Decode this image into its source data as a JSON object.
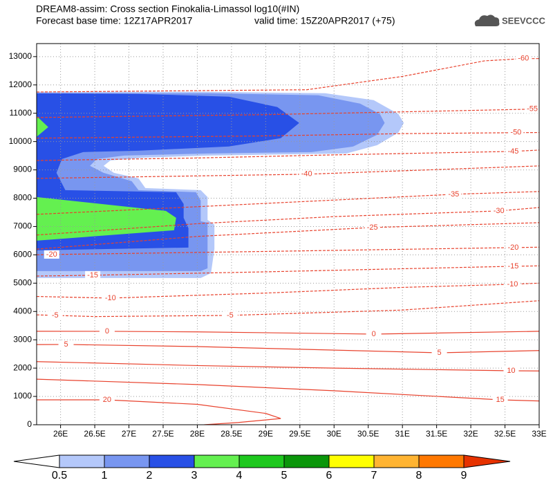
{
  "chart_data": {
    "type": "cross-section",
    "title": "DREAM8-assim: Cross section Finokalia-Limassol log10(#IN)",
    "base_time": "Forecast base time: 12Z17APR2017",
    "valid_time": "valid time: 15Z20APR2017 (+75)",
    "logo": "SEEVCCC",
    "xlim": [
      25.65,
      33
    ],
    "ylim": [
      0,
      13460
    ],
    "xticks": [
      {
        "value": 26,
        "label": "26E"
      },
      {
        "value": 26.5,
        "label": "26.5E"
      },
      {
        "value": 27,
        "label": "27E"
      },
      {
        "value": 27.5,
        "label": "27.5E"
      },
      {
        "value": 28,
        "label": "28E"
      },
      {
        "value": 28.5,
        "label": "28.5E"
      },
      {
        "value": 29,
        "label": "29E"
      },
      {
        "value": 29.5,
        "label": "29.5E"
      },
      {
        "value": 30,
        "label": "30E"
      },
      {
        "value": 30.5,
        "label": "30.5E"
      },
      {
        "value": 31,
        "label": "31E"
      },
      {
        "value": 31.5,
        "label": "31.5E"
      },
      {
        "value": 32,
        "label": "32E"
      },
      {
        "value": 32.5,
        "label": "32.5E"
      },
      {
        "value": 33,
        "label": "33E"
      }
    ],
    "yticks": [
      0,
      1000,
      2000,
      3000,
      4000,
      5000,
      6000,
      7000,
      8000,
      9000,
      10000,
      11000,
      12000,
      13000
    ],
    "grid": true,
    "colorbar": {
      "levels": [
        0.5,
        1,
        2,
        3,
        4,
        5,
        6,
        7,
        8,
        9
      ],
      "colors": [
        "#b4c8fa",
        "#7896f0",
        "#2850e6",
        "#64f050",
        "#1ec81e",
        "#0a960a",
        "#ffff00",
        "#ffb432",
        "#ff7800",
        "#e63200"
      ]
    },
    "fills": [
      {
        "level": 0.5,
        "points": [
          [
            25.65,
            11755
          ],
          [
            28.15,
            11755
          ],
          [
            29.87,
            11707
          ],
          [
            30.58,
            11462
          ],
          [
            30.94,
            10974
          ],
          [
            31.02,
            10656
          ],
          [
            30.94,
            10314
          ],
          [
            30.63,
            9873
          ],
          [
            30.18,
            9580
          ],
          [
            28.15,
            9507
          ],
          [
            27.24,
            9434
          ],
          [
            26.73,
            9336
          ],
          [
            26.63,
            9141
          ],
          [
            26.78,
            8896
          ],
          [
            27.14,
            8701
          ],
          [
            27.24,
            8358
          ],
          [
            28.05,
            8285
          ],
          [
            28.15,
            8041
          ],
          [
            28.15,
            7234
          ],
          [
            28.25,
            7063
          ],
          [
            28.25,
            6208
          ],
          [
            28.2,
            5352
          ],
          [
            28.05,
            5181
          ],
          [
            25.65,
            5181
          ]
        ]
      },
      {
        "level": 1,
        "points": [
          [
            25.65,
            11707
          ],
          [
            28.15,
            11707
          ],
          [
            29.77,
            11633
          ],
          [
            30.38,
            11340
          ],
          [
            30.67,
            10974
          ],
          [
            30.74,
            10656
          ],
          [
            30.63,
            10240
          ],
          [
            30.28,
            9825
          ],
          [
            29.67,
            9629
          ],
          [
            28.15,
            9580
          ],
          [
            26.93,
            9507
          ],
          [
            26.53,
            9385
          ],
          [
            26.43,
            9141
          ],
          [
            26.63,
            8896
          ],
          [
            27.04,
            8603
          ],
          [
            27.14,
            8285
          ],
          [
            27.98,
            8212
          ],
          [
            28.05,
            7918
          ],
          [
            28.05,
            7185
          ],
          [
            28.15,
            7136
          ],
          [
            28.15,
            5523
          ],
          [
            28.05,
            5425
          ],
          [
            25.65,
            5425
          ]
        ]
      },
      {
        "level": 2,
        "points": [
          [
            25.65,
            11707
          ],
          [
            27.14,
            11683
          ],
          [
            28.46,
            11585
          ],
          [
            29.17,
            11218
          ],
          [
            29.49,
            10656
          ],
          [
            29.22,
            10118
          ],
          [
            28.46,
            9825
          ],
          [
            27.14,
            9678
          ],
          [
            26.33,
            9629
          ],
          [
            26.02,
            9385
          ],
          [
            25.94,
            8896
          ],
          [
            26.07,
            8285
          ],
          [
            27.69,
            8212
          ],
          [
            27.8,
            7797
          ],
          [
            27.8,
            7308
          ],
          [
            27.87,
            6941
          ],
          [
            27.87,
            6257
          ],
          [
            25.65,
            6159
          ]
        ]
      },
      {
        "level": 3,
        "points": [
          [
            25.65,
            10900
          ],
          [
            25.82,
            10509
          ],
          [
            25.65,
            10167
          ]
        ]
      },
      {
        "level": 3,
        "points": [
          [
            25.65,
            8041
          ],
          [
            27.54,
            7552
          ],
          [
            27.69,
            7308
          ],
          [
            27.66,
            6868
          ],
          [
            25.65,
            6501
          ]
        ]
      }
    ],
    "contour_color": "#e8412c",
    "contours": [
      {
        "value": -60,
        "points": [
          [
            25.65,
            11750
          ],
          [
            29.6,
            11830
          ],
          [
            31,
            12300
          ],
          [
            32.2,
            12850
          ],
          [
            32.77,
            12930
          ],
          [
            33,
            12930
          ]
        ]
      },
      {
        "value": -55,
        "points": [
          [
            25.65,
            10850
          ],
          [
            29,
            10950
          ],
          [
            31,
            11050
          ],
          [
            32.9,
            11145
          ],
          [
            33,
            11150
          ]
        ]
      },
      {
        "value": -50,
        "points": [
          [
            25.65,
            10120
          ],
          [
            29,
            10200
          ],
          [
            31,
            10280
          ],
          [
            32.66,
            10314
          ],
          [
            33,
            10320
          ]
        ]
      },
      {
        "value": -45,
        "points": [
          [
            25.65,
            9330
          ],
          [
            28,
            9420
          ],
          [
            30,
            9530
          ],
          [
            32.62,
            9653
          ],
          [
            33,
            9700
          ]
        ]
      },
      {
        "value": -40,
        "points": [
          [
            25.65,
            8700
          ],
          [
            29.6,
            8847
          ],
          [
            33,
            9140
          ]
        ]
      },
      {
        "value": -35,
        "points": [
          [
            25.65,
            7430
          ],
          [
            28,
            7700
          ],
          [
            31.75,
            8138
          ],
          [
            33,
            8236
          ]
        ]
      },
      {
        "value": -30,
        "points": [
          [
            25.65,
            6700
          ],
          [
            28,
            7100
          ],
          [
            30,
            7350
          ],
          [
            32.41,
            7551
          ],
          [
            33,
            7670
          ]
        ]
      },
      {
        "value": -25,
        "points": [
          [
            25.65,
            6200
          ],
          [
            28,
            6650
          ],
          [
            30.56,
            6965
          ],
          [
            33,
            7136
          ]
        ]
      },
      {
        "value": -20,
        "points": [
          [
            25.65,
            6000
          ],
          [
            25.87,
            6012
          ],
          [
            27,
            6050
          ],
          [
            29,
            6120
          ],
          [
            32.62,
            6256
          ],
          [
            33,
            6270
          ]
        ]
      },
      {
        "value": -15,
        "points": [
          [
            25.65,
            5250
          ],
          [
            26.47,
            5279
          ],
          [
            29,
            5400
          ],
          [
            32.62,
            5596
          ],
          [
            33,
            5610
          ]
        ]
      },
      {
        "value": -10,
        "points": [
          [
            25.65,
            4530
          ],
          [
            26.73,
            4472
          ],
          [
            29,
            4650
          ],
          [
            31,
            4850
          ],
          [
            32.61,
            4961
          ],
          [
            33,
            5000
          ]
        ]
      },
      {
        "value": -5,
        "points": [
          [
            25.65,
            3880
          ],
          [
            25.92,
            3861
          ],
          [
            26.5,
            3820
          ],
          [
            28.48,
            3861
          ],
          [
            31,
            4050
          ],
          [
            33,
            4380
          ]
        ]
      },
      {
        "value": 0,
        "points": [
          [
            25.65,
            3300
          ],
          [
            26.68,
            3299
          ],
          [
            28,
            3280
          ],
          [
            30.58,
            3201
          ],
          [
            33,
            3300
          ]
        ]
      },
      {
        "value": 5,
        "points": [
          [
            25.65,
            2830
          ],
          [
            26.08,
            2835
          ],
          [
            28,
            2760
          ],
          [
            31.54,
            2541
          ],
          [
            33,
            2620
          ]
        ]
      },
      {
        "value": 10,
        "points": [
          [
            25.65,
            2230
          ],
          [
            28,
            2090
          ],
          [
            30,
            2000
          ],
          [
            32.59,
            1906
          ],
          [
            33,
            1900
          ]
        ]
      },
      {
        "value": 15,
        "points": [
          [
            25.65,
            1610
          ],
          [
            28,
            1420
          ],
          [
            30,
            1200
          ],
          [
            32.43,
            880
          ],
          [
            33,
            840
          ]
        ]
      },
      {
        "value": 20,
        "points": [
          [
            25.65,
            880
          ],
          [
            26.68,
            880
          ],
          [
            28,
            720
          ],
          [
            29,
            400
          ],
          [
            29.22,
            220
          ],
          [
            28.6,
            80
          ],
          [
            28.1,
            0
          ]
        ]
      }
    ]
  }
}
